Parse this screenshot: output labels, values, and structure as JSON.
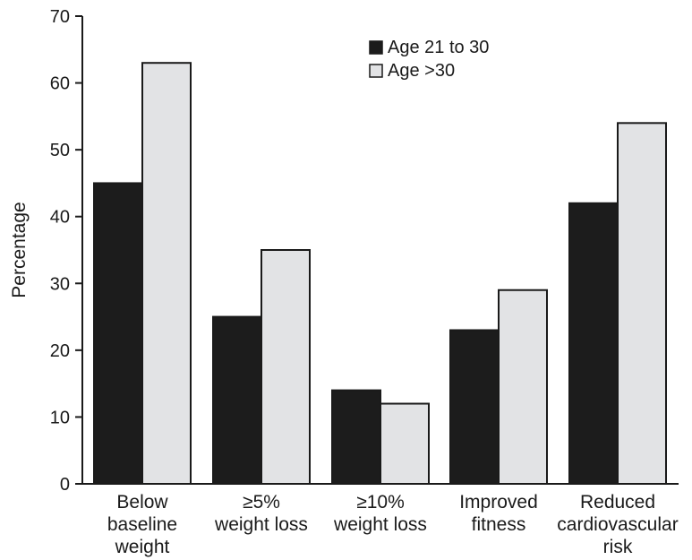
{
  "chart_data": {
    "type": "bar",
    "title": "",
    "xlabel": "",
    "ylabel": "Percentage",
    "ylim": [
      0,
      70
    ],
    "yticks": [
      0,
      10,
      20,
      30,
      40,
      50,
      60,
      70
    ],
    "grid": false,
    "legend_position": "top-center",
    "categories": [
      [
        "Below",
        "baseline",
        "weight"
      ],
      [
        "≥5%",
        "weight loss"
      ],
      [
        "≥10%",
        "weight loss"
      ],
      [
        "Improved",
        "fitness"
      ],
      [
        "Reduced",
        "cardiovascular",
        "risk"
      ]
    ],
    "series": [
      {
        "name": "Age 21 to 30",
        "color": "#1c1c1c",
        "values": [
          45,
          25,
          14,
          23,
          42
        ]
      },
      {
        "name": "Age >30",
        "color": "#e2e3e5",
        "values": [
          63,
          35,
          12,
          29,
          54
        ]
      }
    ]
  }
}
